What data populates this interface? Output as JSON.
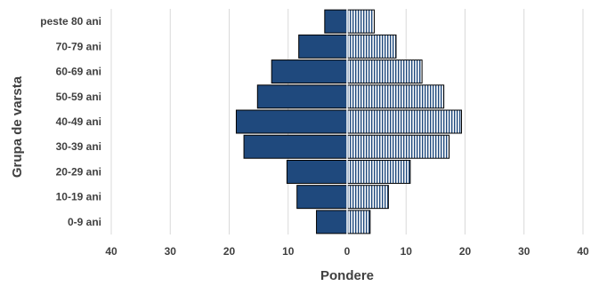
{
  "chart_data": {
    "type": "bar",
    "orientation": "horizontal",
    "title": "",
    "xlabel": "Pondere",
    "ylabel": "Grupa de varsta",
    "categories": [
      "peste 80 ani",
      "70-79 ani",
      "60-69 ani",
      "50-59 ani",
      "40-49 ani",
      "30-39 ani",
      "20-29 ani",
      "10-19 ani",
      "0-9 ani"
    ],
    "series": [
      {
        "values": [
          -3.8,
          -8.2,
          -12.8,
          -15.2,
          -18.8,
          -17.5,
          -10.2,
          -8.5,
          -5.2
        ],
        "color": "#1f497d",
        "pattern": "solid"
      },
      {
        "values": [
          4.6,
          8.3,
          12.7,
          16.4,
          19.4,
          17.3,
          10.7,
          7.0,
          3.9
        ],
        "color": "#1f497d",
        "pattern": "vertical-stripes"
      }
    ],
    "xlim": [
      -40,
      40
    ],
    "xticks": [
      -40,
      -30,
      -20,
      -10,
      0,
      10,
      20,
      30,
      40
    ],
    "xtick_labels": [
      "40",
      "30",
      "20",
      "10",
      "0",
      "10",
      "20",
      "30",
      "40"
    ],
    "grid": true,
    "legend": "none"
  }
}
